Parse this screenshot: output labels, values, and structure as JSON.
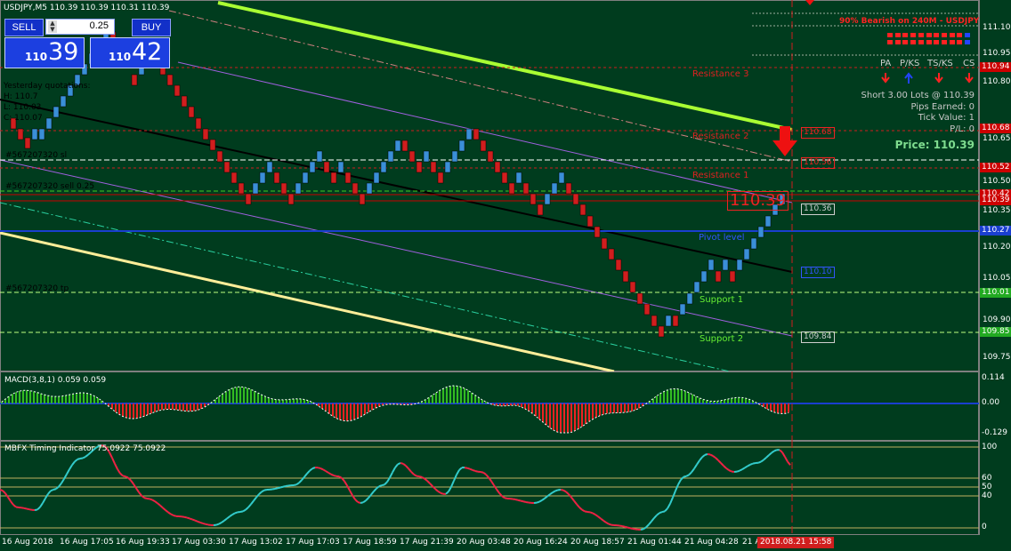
{
  "window": {
    "symbol_title": "USDJPY,M5  110.39 110.39 110.31 110.39"
  },
  "trade_panel": {
    "sell_label": "SELL",
    "buy_label": "BUY",
    "lot_value": "0.25",
    "bid_big": "110",
    "bid_small": "39",
    "ask_big": "110",
    "ask_small": "42"
  },
  "yesterday_quotes": {
    "title": "Yesterday quotations:",
    "h": "H: 110.7",
    "l": "L: 110.03",
    "c": "C: 110.07"
  },
  "info_panel": {
    "bias_text": "90% Bearish on 240M - USDJPY",
    "headers": [
      "PA",
      "P/KS",
      "TS/KS",
      "CS"
    ],
    "short_text": "Short 3.00 Lots @ 110.39",
    "pips_earned": "Pips Earned: 0",
    "tick_value": "Tick Value: 1",
    "pl": "P/L: 0",
    "price_text": "Price: 110.39"
  },
  "chart_labels": {
    "resistance3": "Resistance 3",
    "resistance2": "Resistance 2",
    "resistance1": "Resistance 1",
    "pivot": "Pivot level",
    "support1": "Support 1",
    "support2": "Support 2",
    "order1": "#567207320 sl",
    "order2": "#567207320 sell 0.25",
    "order3": "#567207320 tp",
    "current_price_big": "110.39",
    "box_110_68": "110.68",
    "box_110_56": "110.56",
    "box_110_36": "110.36",
    "box_110_10": "110.10",
    "box_109_84": "109.84"
  },
  "price_axis": {
    "ticks": [
      "111.10",
      "110.95",
      "110.80",
      "110.65",
      "110.50",
      "110.35",
      "110.20",
      "110.05",
      "109.90",
      "109.75"
    ],
    "tags": [
      {
        "text": "110.94",
        "color": "#cc0000"
      },
      {
        "text": "110.68",
        "color": "#cc0000"
      },
      {
        "text": "110.52",
        "color": "#cc0000"
      },
      {
        "text": "110.42",
        "color": "#cc0000"
      },
      {
        "text": "110.39",
        "color": "#cc0000"
      },
      {
        "text": "110.27",
        "color": "#1a3fd0"
      },
      {
        "text": "110.01",
        "color": "#22aa22"
      },
      {
        "text": "109.85",
        "color": "#22aa22"
      }
    ]
  },
  "macd": {
    "label": "MACD(3,8,1) 0.059 0.059",
    "axis_top": "0.114",
    "axis_mid": "0.00",
    "axis_bottom": "-0.129"
  },
  "mbfx": {
    "label": "MBFX Timing Indicator 75.0922 75.0922",
    "axis": [
      "100",
      "60",
      "50",
      "40",
      "0"
    ]
  },
  "time_axis": {
    "labels": [
      "16 Aug 2018",
      "16 Aug 17:05",
      "16 Aug 19:33",
      "17 Aug 03:30",
      "17 Aug 13:02",
      "17 Aug 17:03",
      "17 Aug 18:59",
      "17 Aug 21:39",
      "20 Aug 03:48",
      "20 Aug 16:24",
      "20 Aug 18:57",
      "21 Aug 01:44",
      "21 Aug 04:28",
      "21 A"
    ],
    "current_time": "2018.08.21 15:58"
  },
  "colors": {
    "background": "#003c1e",
    "bull_brick": "#3a8fd8",
    "bear_brick": "#d01e1e",
    "resistance": "#d01e1e",
    "support": "#44cc22",
    "pivot": "#1a3fd0",
    "ma_green": "#aaff33",
    "ma_yellow": "#ffee99",
    "ma_black": "#000000",
    "ma_violet": "#a060e0"
  }
}
